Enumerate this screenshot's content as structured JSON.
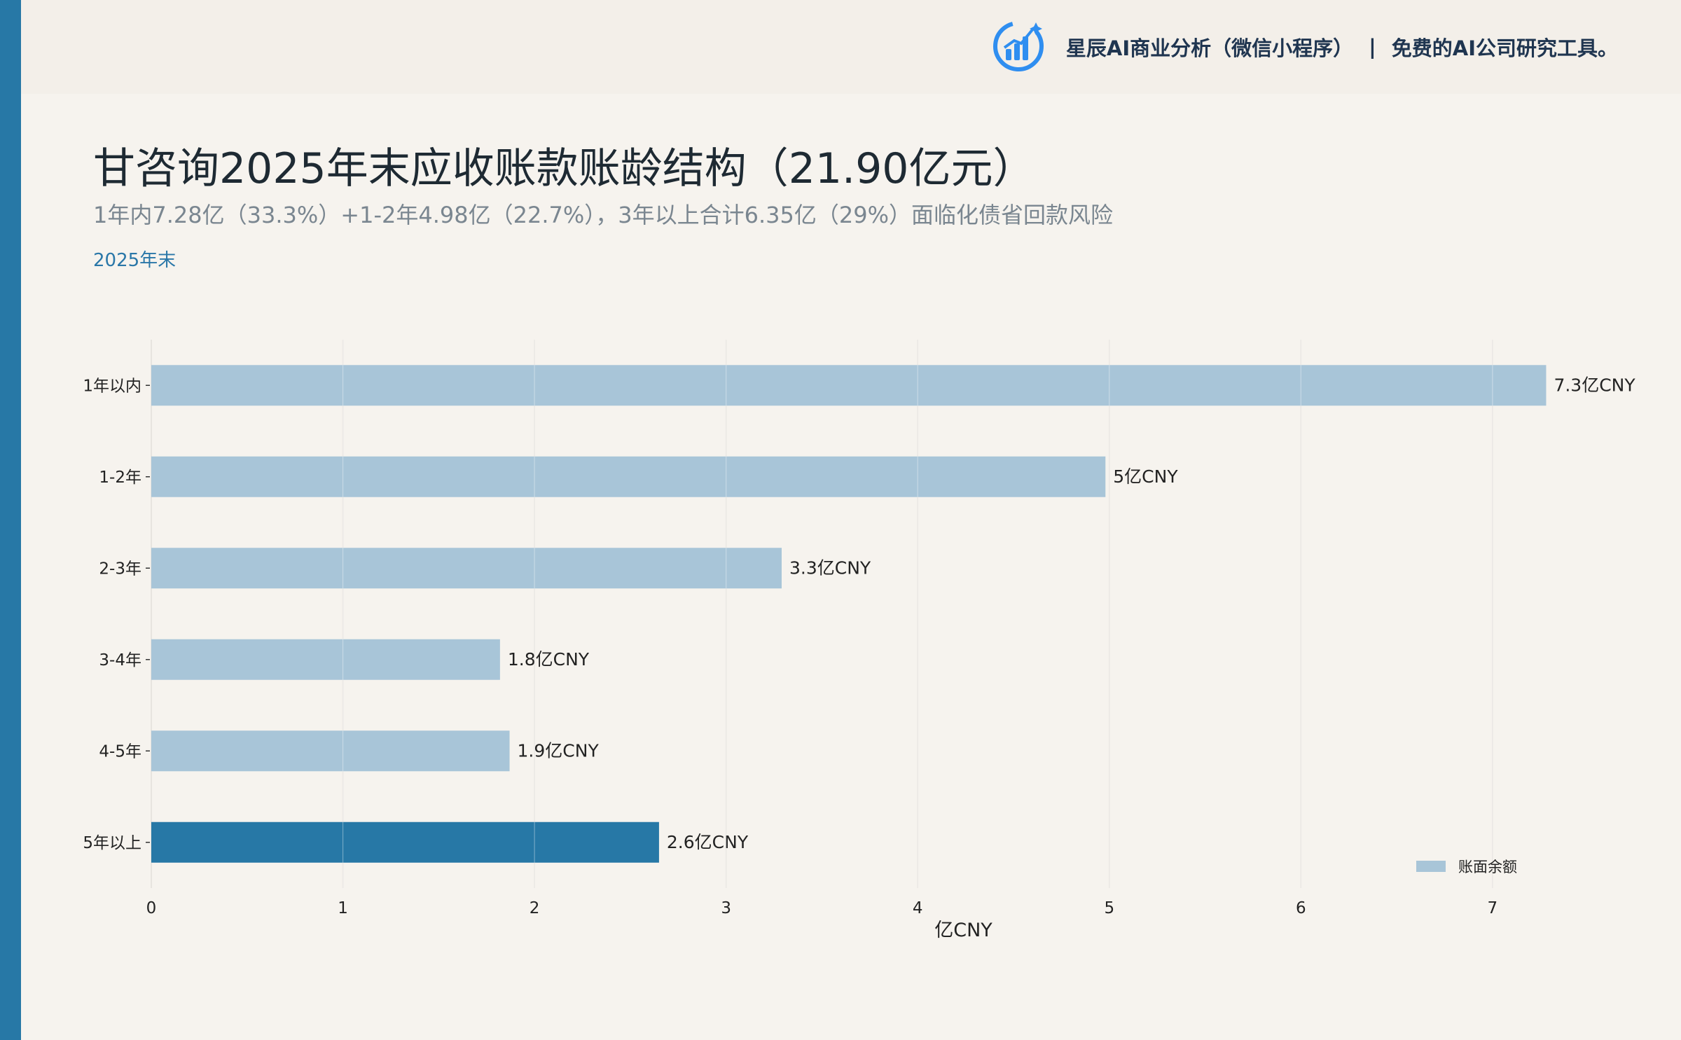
{
  "header": {
    "brand_name": "星辰AI商业分析（微信小程序）",
    "separator": "|",
    "tagline": "免费的AI公司研究工具。",
    "logo_icon": "bar-chart-circle-icon"
  },
  "title": "甘咨询2025年末应收账款账龄结构（21.90亿元）",
  "subtitle": "1年内7.28亿（33.3%）+1-2年4.98亿（22.7%），3年以上合计6.35亿（29%）面临化债省回款风险",
  "period_label": "2025年末",
  "colors": {
    "accent": "#2778a6",
    "bar_default": "#a8c5d8",
    "bar_highlight": "#2778a6",
    "background": "#f6f3ee",
    "brand_text": "#1f3550"
  },
  "chart_data": {
    "type": "bar",
    "orientation": "horizontal",
    "categories": [
      "1年以内",
      "1-2年",
      "2-3年",
      "3-4年",
      "4-5年",
      "5年以上"
    ],
    "values": [
      7.28,
      4.98,
      3.29,
      1.82,
      1.87,
      2.65
    ],
    "value_labels": [
      "7.3亿CNY",
      "5亿CNY",
      "3.3亿CNY",
      "1.8亿CNY",
      "1.9亿CNY",
      "2.6亿CNY"
    ],
    "highlight_index": 5,
    "series": [
      {
        "name": "账面余额"
      }
    ],
    "xlabel": "亿CNY",
    "ylabel": "",
    "xlim": [
      0,
      7.6
    ],
    "xticks": [
      0,
      1,
      2,
      3,
      4,
      5,
      6,
      7
    ],
    "grid": true,
    "legend_position": "bottom-right"
  }
}
